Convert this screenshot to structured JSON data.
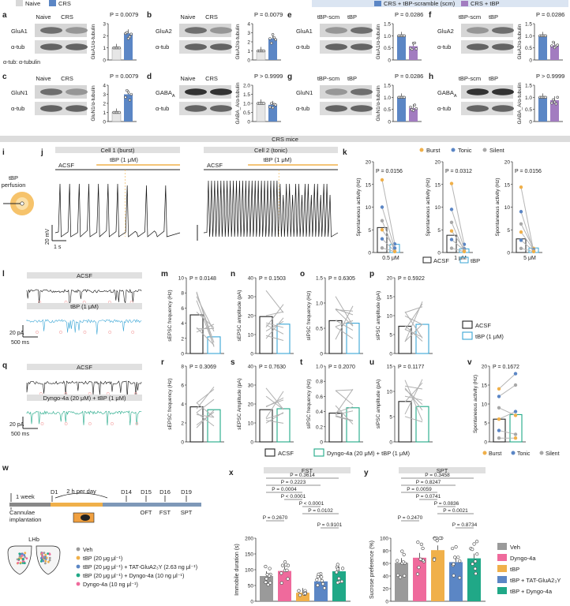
{
  "legend_top": {
    "naive": "Naive",
    "crs": "CRS",
    "scm": "CRS + tBP-scramble (scm)",
    "tbp": "CRS + tBP"
  },
  "colors": {
    "blue": "#5b86c5",
    "purple": "#a27cc0",
    "trace_blue": "#3aa6d6",
    "trace_green": "#20a887",
    "orange": "#f0b04a",
    "red": "#e03030",
    "pink": "#ef6a9c",
    "salmon": "#f4a6a6",
    "gray": "#a8a8a8"
  },
  "panels_top": [
    {
      "letter": "a",
      "l1": "Naive",
      "l2": "CRS",
      "prot": "GluA1",
      "ref": "α-tub",
      "p": "P = 0.0079",
      "ylab": "GluA1/α-tubulin",
      "ticks": [
        "0",
        "1",
        "2",
        "3"
      ],
      "c1": "naive",
      "c2": "crs",
      "v": [
        1.0,
        2.2
      ],
      "extra": "α-tub: α-tubulin"
    },
    {
      "letter": "b",
      "l1": "Naive",
      "l2": "CRS",
      "prot": "GluA2",
      "ref": "α-tub",
      "p": "P = 0.0079",
      "ylab": "GluA2/α-tubulin",
      "ticks": [
        "0",
        "1",
        "2",
        "3",
        "4"
      ],
      "c1": "naive",
      "c2": "crs",
      "v": [
        1.0,
        2.35
      ]
    },
    {
      "letter": "c",
      "l1": "Naive",
      "l2": "CRS",
      "prot": "GluN1",
      "ref": "α-tub",
      "p": "P = 0.0079",
      "ylab": "GluN1/α-tubulin",
      "ticks": [
        "0",
        "1",
        "2",
        "3",
        "4"
      ],
      "c1": "naive",
      "c2": "crs",
      "v": [
        1.0,
        3.0
      ]
    },
    {
      "letter": "d",
      "l1": "Naive",
      "l2": "CRS",
      "prot": "GABA_A",
      "ref": "α-tub",
      "p": "P > 0.9999",
      "ylab": "GABA_A/α-tubulin",
      "ticks": [
        "0",
        "0.5",
        "1.0",
        "1.5",
        "2.0"
      ],
      "c1": "naive",
      "c2": "crs",
      "v": [
        1.0,
        0.92
      ]
    },
    {
      "letter": "e",
      "l1": "tBP-scm",
      "l2": "tBP",
      "prot": "GluA1",
      "ref": "α-tub",
      "p": "P = 0.0286",
      "ylab": "GluA1/α-tubulin",
      "ticks": [
        "0",
        "0.5",
        "1.0",
        "1.5"
      ],
      "c1": "scm",
      "c2": "tbp",
      "v": [
        1.0,
        0.57
      ]
    },
    {
      "letter": "f",
      "l1": "tBP-scm",
      "l2": "tBP",
      "prot": "GluA2",
      "ref": "α-tub",
      "p": "P = 0.0286",
      "ylab": "GluA2/α-tubulin",
      "ticks": [
        "0",
        "0.5",
        "1.0",
        "1.5"
      ],
      "c1": "scm",
      "c2": "tbp",
      "v": [
        1.0,
        0.6
      ]
    },
    {
      "letter": "g",
      "l1": "tBP-scm",
      "l2": "tBP",
      "prot": "GluN1",
      "ref": "α-tub",
      "p": "P = 0.0286",
      "ylab": "GluN1/α-tubulin",
      "ticks": [
        "0",
        "0.5",
        "1.0",
        "1.5"
      ],
      "c1": "scm",
      "c2": "tbp",
      "v": [
        1.0,
        0.55
      ]
    },
    {
      "letter": "h",
      "l1": "tBP-scm",
      "l2": "tBP",
      "prot": "GABA_A",
      "ref": "α-tub",
      "p": "P > 0.9999",
      "ylab": "GABA_A/α-tubulin",
      "ticks": [
        "0",
        "0.5",
        "1.0",
        "1.5"
      ],
      "c1": "scm",
      "c2": "tbp",
      "v": [
        1.0,
        0.88
      ]
    }
  ],
  "crs_mice": "CRS mice",
  "panel_i": {
    "letter": "i",
    "label1": "tBP",
    "label2": "perfusion"
  },
  "panel_j": {
    "letter": "j",
    "cell1": "Cell 1 (burst)",
    "cell2": "Cell 2 (tonic)",
    "acsf": "ACSF",
    "drug": "tBP (1 μM)",
    "scale_v": "20 mV",
    "scale_t": "1 s"
  },
  "panel_k": {
    "letter": "k",
    "legend": [
      "Burst",
      "Tonic",
      "Silent"
    ],
    "ylab": "Spontaneous activity (Hz)",
    "ticks": [
      "0",
      "5",
      "10",
      "15",
      "20"
    ],
    "subs": [
      {
        "p": "P = 0.0156",
        "x": "0.5 μM",
        "v": [
          5.5,
          1.8
        ]
      },
      {
        "p": "P = 0.0312",
        "x": "1 μM",
        "v": [
          3.8,
          0.8
        ]
      },
      {
        "p": "P = 0.0156",
        "x": "5 μM",
        "v": [
          3.0,
          1.0
        ]
      }
    ],
    "leg_acsf": "ACSF",
    "leg_tbp": "tBP"
  },
  "panel_l": {
    "letter": "l",
    "acsf": "ACSF",
    "drug": "tBP (1 μM)",
    "scale_a": "20 pA",
    "scale_t": "500 ms"
  },
  "row_mp": [
    {
      "letter": "m",
      "p": "P = 0.0148",
      "ylab": "sEPSC frequency (Hz)",
      "ticks": [
        "0",
        "2",
        "4",
        "6",
        "8",
        "10"
      ],
      "ymax": 10,
      "v": [
        5.1,
        2.2
      ],
      "red": true
    },
    {
      "letter": "n",
      "p": "P = 0.1503",
      "ylab": "sEPSC amplitude (pA)",
      "ticks": [
        "0",
        "10",
        "20",
        "30",
        "40"
      ],
      "ymax": 40,
      "v": [
        19.5,
        15.5
      ],
      "red": false
    },
    {
      "letter": "o",
      "p": "P = 0.6305",
      "ylab": "sIPSC frequency (Hz)",
      "ticks": [
        "0",
        "0.5",
        "1.0",
        "1.5"
      ],
      "ymax": 1.5,
      "v": [
        0.65,
        0.6
      ],
      "red": false
    },
    {
      "letter": "p",
      "p": "P = 0.5922",
      "ylab": "sIPSC amplitude (pA)",
      "ticks": [
        "0",
        "5",
        "10",
        "15",
        "20"
      ],
      "ymax": 20,
      "v": [
        7.2,
        7.7
      ],
      "red": false
    }
  ],
  "legend_mp": {
    "acsf": "ACSF",
    "tbp": "tBP (1 μM)"
  },
  "panel_q": {
    "letter": "q",
    "acsf": "ACSF",
    "drug": "Dyngo-4a (20 μM) + tBP (1 μM)",
    "scale_a": "20 pA",
    "scale_t": "500 ms"
  },
  "row_ru": [
    {
      "letter": "r",
      "p": "P = 0.3069",
      "ylab": "sEPSC frequency (Hz)",
      "ticks": [
        "0",
        "2",
        "4",
        "6",
        "8"
      ],
      "ymax": 8,
      "v": [
        3.7,
        3.4
      ]
    },
    {
      "letter": "s",
      "p": "P = 0.7630",
      "ylab": "sEPSC Amplitude (pA)",
      "ticks": [
        "0",
        "10",
        "20",
        "30",
        "40"
      ],
      "ymax": 40,
      "v": [
        17,
        17.5
      ]
    },
    {
      "letter": "t",
      "p": "P = 0.2070",
      "ylab": "sIPSC frequency (Hz)",
      "ticks": [
        "0",
        "0.2",
        "0.4",
        "0.6",
        "0.8",
        "1.0"
      ],
      "ymax": 1.0,
      "v": [
        0.38,
        0.45
      ]
    },
    {
      "letter": "u",
      "p": "P = 0.1177",
      "ylab": "sIPSC amplitude (pA)",
      "ticks": [
        "0",
        "5",
        "10",
        "15"
      ],
      "ymax": 15,
      "v": [
        8.0,
        7.0
      ]
    }
  ],
  "panel_v": {
    "letter": "v",
    "p": "P = 0.1672",
    "ylab": "Spontaneous activity (Hz)",
    "ticks": [
      "0",
      "5",
      "10",
      "15",
      "20"
    ],
    "v": [
      6.0,
      7.2
    ],
    "legend": [
      "Burst",
      "Tonic",
      "Silent"
    ]
  },
  "legend_ru": {
    "acsf": "ACSF",
    "drug": "Dyngo-4a (20 μM) + tBP (1 μM)"
  },
  "panel_w": {
    "letter": "w",
    "week": "1 week",
    "perday": "2 h per day",
    "cannulae": "Cannulae",
    "implant": "implantation",
    "days": [
      "D1",
      "D14",
      "D15",
      "D16",
      "D19"
    ],
    "tests": [
      "OFT",
      "FST",
      "SPT"
    ],
    "lhb": "LHb",
    "groups": [
      "Veh",
      "tBP (20 μg μl⁻¹)",
      "tBP (20 μg μl⁻¹) + TAT-GluA2₃Y (2.63 ng μl⁻¹)",
      "tBP (20 μg μl⁻¹) + Dyngo-4a (10 ng μl⁻¹)",
      "Dyngo-4a (10 ng μl⁻¹)"
    ]
  },
  "panel_x": {
    "letter": "x",
    "title": "FST",
    "ylab": "Immobile duration (s)",
    "ticks": [
      "0",
      "50",
      "100",
      "150",
      "200"
    ],
    "values": [
      80,
      96,
      27,
      63,
      95
    ],
    "pvals": [
      "P = 0.3614",
      "P = 0.2223",
      "P = 0.0004",
      "P < 0.0001",
      "P < 0.0001",
      "P = 0.0102",
      "P = 0.2670",
      "P = 0.9101"
    ]
  },
  "panel_y": {
    "letter": "y",
    "title": "SPT",
    "ylab": "Sucrose preference (%)",
    "ticks": [
      "0",
      "20",
      "40",
      "60",
      "80",
      "100"
    ],
    "values": [
      61,
      69,
      81,
      62,
      68
    ],
    "pvals": [
      "P = 0.3458",
      "P = 0.8247",
      "P = 0.0059",
      "P = 0.0741",
      "P = 0.0836",
      "P = 0.0021",
      "P = 0.2470",
      "P = 0.8734"
    ]
  },
  "legend_y": [
    "Veh",
    "Dyngo-4a",
    "tBP",
    "tBP + TAT-GluA2₃Y",
    "tBP + Dyngo-4a"
  ]
}
